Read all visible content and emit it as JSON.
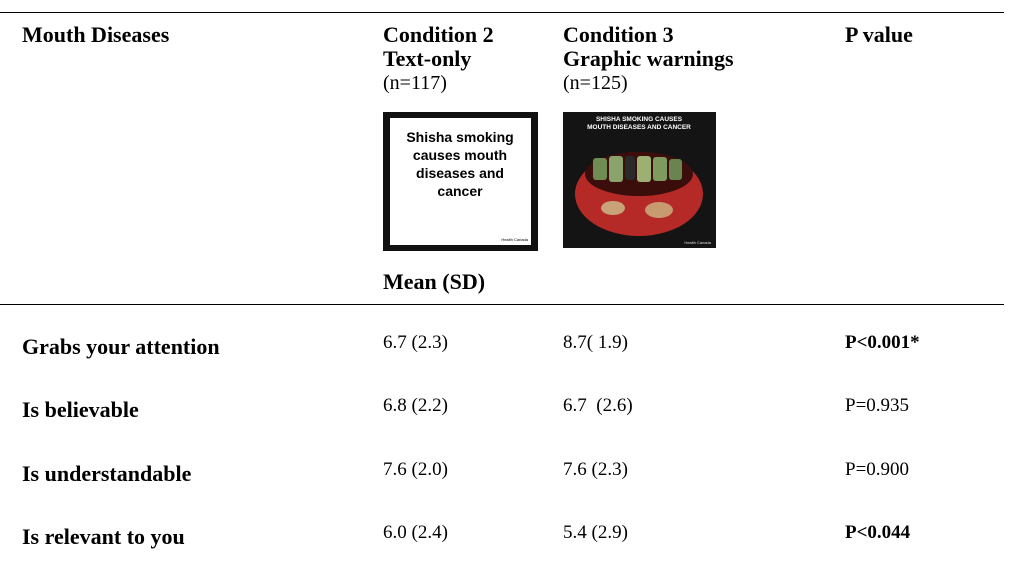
{
  "table": {
    "header": {
      "title": "Mouth Diseases",
      "condition2": [
        "Condition 2",
        "Text-only"
      ],
      "condition2_n": "(n=117)",
      "condition3": [
        "Condition 3",
        "Graphic warnings"
      ],
      "condition3_n": "(n=125)",
      "p_value": "P value",
      "subheader": "Mean (SD)"
    },
    "rows": [
      [
        "Grabs your attention",
        "6.7 (2.3)",
        "8.7( 1.9)",
        "P<0.001*"
      ],
      [
        "Is believable",
        "6.8 (2.2)",
        "6.7  (2.6)",
        "P=0.935"
      ],
      [
        "Is understandable",
        "7.6 (2.0)",
        "7.6 (2.3)",
        "P=0.900"
      ],
      [
        "Is relevant to you",
        "6.0 (2.4)",
        "5.4 (2.9)",
        "P<0.044"
      ]
    ]
  },
  "images": {
    "text_warning": {
      "lines": [
        "Shisha smoking",
        "causes mouth",
        "diseases and",
        "cancer"
      ],
      "credit": "Health Canada"
    },
    "graphic_warning": {
      "lines": [
        "SHISHA SMOKING CAUSES",
        "MOUTH DISEASES AND CANCER"
      ],
      "credit": "Health Canada"
    }
  }
}
